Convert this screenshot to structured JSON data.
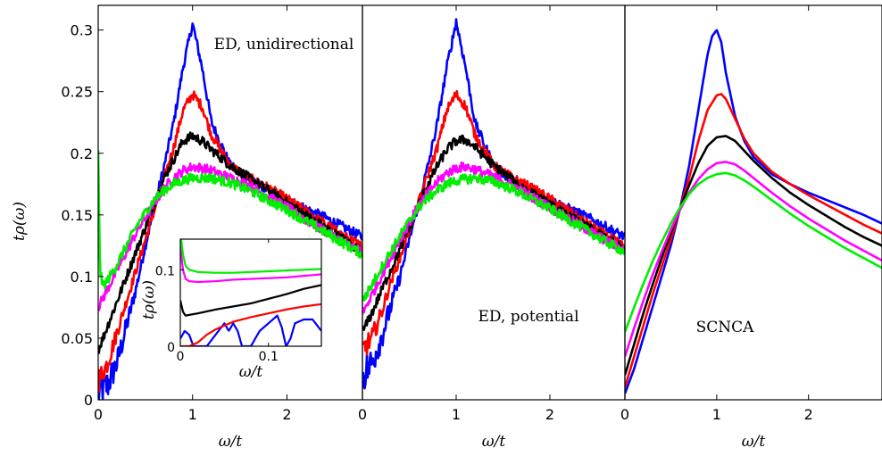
{
  "figure": {
    "ylabel": "tρ(ω)",
    "xlabel": "ω/t"
  },
  "colors": {
    "blue": "#0000ff",
    "red": "#ff0000",
    "black": "#000000",
    "magenta": "#ff00ff",
    "green": "#00ee00"
  },
  "chart_data": [
    {
      "type": "line",
      "panel": "left",
      "annotation": "ED, unidirectional",
      "xlabel": "ω/t",
      "ylabel": "tρ(ω)",
      "xlim": [
        0,
        2.8
      ],
      "ylim": [
        0,
        0.32
      ],
      "xticks": [
        "0",
        "1",
        "2"
      ],
      "yticks": [
        "0",
        "0.05",
        "0.1",
        "0.15",
        "0.2",
        "0.25",
        "0.3"
      ],
      "noisy": true,
      "series": [
        {
          "color": "blue",
          "x": [
            0,
            0.1,
            0.2,
            0.3,
            0.4,
            0.5,
            0.6,
            0.7,
            0.8,
            0.9,
            1.0,
            1.1,
            1.2,
            1.4,
            1.6,
            1.8,
            2.0,
            2.2,
            2.4,
            2.6,
            2.8
          ],
          "y": [
            0.005,
            0.012,
            0.03,
            0.06,
            0.09,
            0.125,
            0.158,
            0.19,
            0.225,
            0.27,
            0.305,
            0.27,
            0.225,
            0.19,
            0.178,
            0.17,
            0.162,
            0.155,
            0.148,
            0.14,
            0.132
          ]
        },
        {
          "color": "red",
          "x": [
            0,
            0.1,
            0.2,
            0.3,
            0.4,
            0.5,
            0.6,
            0.7,
            0.8,
            0.9,
            1.0,
            1.1,
            1.2,
            1.4,
            1.6,
            1.8,
            2.0,
            2.2,
            2.4,
            2.6,
            2.8
          ],
          "y": [
            0.015,
            0.03,
            0.055,
            0.08,
            0.105,
            0.13,
            0.155,
            0.18,
            0.205,
            0.235,
            0.248,
            0.238,
            0.215,
            0.19,
            0.18,
            0.172,
            0.163,
            0.153,
            0.143,
            0.133,
            0.124
          ]
        },
        {
          "color": "black",
          "x": [
            0,
            0.1,
            0.2,
            0.3,
            0.4,
            0.5,
            0.6,
            0.7,
            0.8,
            0.9,
            1.0,
            1.1,
            1.2,
            1.4,
            1.6,
            1.8,
            2.0,
            2.2,
            2.4,
            2.6,
            2.8
          ],
          "y": [
            0.04,
            0.06,
            0.08,
            0.1,
            0.12,
            0.14,
            0.16,
            0.18,
            0.195,
            0.21,
            0.214,
            0.21,
            0.203,
            0.19,
            0.18,
            0.17,
            0.16,
            0.15,
            0.14,
            0.13,
            0.12
          ]
        },
        {
          "color": "magenta",
          "x": [
            0,
            0.1,
            0.2,
            0.3,
            0.4,
            0.5,
            0.6,
            0.7,
            0.8,
            0.9,
            1.0,
            1.1,
            1.2,
            1.4,
            1.6,
            1.8,
            2.0,
            2.2,
            2.4,
            2.6,
            2.8
          ],
          "y": [
            0.075,
            0.09,
            0.105,
            0.12,
            0.135,
            0.148,
            0.16,
            0.172,
            0.18,
            0.186,
            0.189,
            0.188,
            0.186,
            0.18,
            0.174,
            0.165,
            0.156,
            0.146,
            0.137,
            0.128,
            0.12
          ]
        },
        {
          "color": "green",
          "x": [
            0,
            0.02,
            0.05,
            0.1,
            0.2,
            0.3,
            0.4,
            0.5,
            0.6,
            0.7,
            0.8,
            0.9,
            1.0,
            1.2,
            1.4,
            1.6,
            1.8,
            2.0,
            2.2,
            2.4,
            2.6,
            2.8
          ],
          "y": [
            0.2,
            0.105,
            0.092,
            0.097,
            0.11,
            0.125,
            0.14,
            0.152,
            0.163,
            0.17,
            0.175,
            0.178,
            0.18,
            0.18,
            0.176,
            0.17,
            0.162,
            0.154,
            0.145,
            0.136,
            0.127,
            0.118
          ]
        }
      ]
    },
    {
      "type": "line",
      "panel": "inset",
      "xlabel": "ω/t",
      "ylabel": "tρ(ω)",
      "xlim": [
        0,
        0.16
      ],
      "ylim": [
        0,
        0.14
      ],
      "xticks": [
        "0",
        "0.1"
      ],
      "yticks": [
        "0",
        "0.1"
      ],
      "noisy": false,
      "series": [
        {
          "color": "blue",
          "x": [
            0,
            0.005,
            0.01,
            0.015,
            0.02,
            0.03,
            0.04,
            0.05,
            0.055,
            0.06,
            0.065,
            0.07,
            0.08,
            0.09,
            0.1,
            0.11,
            0.115,
            0.12,
            0.125,
            0.13,
            0.14,
            0.15,
            0.16
          ],
          "y": [
            0.01,
            0.02,
            0.015,
            0.0,
            0.0,
            0.0,
            0.015,
            0.03,
            0.02,
            0.03,
            0.02,
            0.0,
            0.0,
            0.02,
            0.03,
            0.04,
            0.025,
            0.0,
            0.01,
            0.03,
            0.035,
            0.035,
            0.02
          ]
        },
        {
          "color": "red",
          "x": [
            0,
            0.01,
            0.02,
            0.03,
            0.04,
            0.06,
            0.08,
            0.1,
            0.12,
            0.14,
            0.16
          ],
          "y": [
            0.0,
            0.0,
            0.005,
            0.015,
            0.022,
            0.032,
            0.038,
            0.043,
            0.048,
            0.052,
            0.055
          ]
        },
        {
          "color": "black",
          "x": [
            0,
            0.003,
            0.006,
            0.01,
            0.02,
            0.04,
            0.06,
            0.08,
            0.1,
            0.12,
            0.14,
            0.16
          ],
          "y": [
            0.06,
            0.045,
            0.04,
            0.041,
            0.043,
            0.048,
            0.052,
            0.056,
            0.062,
            0.068,
            0.075,
            0.08
          ]
        },
        {
          "color": "magenta",
          "x": [
            0,
            0.003,
            0.006,
            0.01,
            0.02,
            0.04,
            0.06,
            0.08,
            0.1,
            0.12,
            0.14,
            0.16
          ],
          "y": [
            0.13,
            0.1,
            0.088,
            0.085,
            0.084,
            0.085,
            0.087,
            0.088,
            0.089,
            0.09,
            0.092,
            0.094
          ]
        },
        {
          "color": "green",
          "x": [
            0,
            0.003,
            0.006,
            0.01,
            0.02,
            0.04,
            0.06,
            0.08,
            0.1,
            0.12,
            0.14,
            0.16
          ],
          "y": [
            0.15,
            0.12,
            0.105,
            0.1,
            0.097,
            0.096,
            0.096,
            0.097,
            0.098,
            0.099,
            0.1,
            0.101
          ]
        }
      ]
    },
    {
      "type": "line",
      "panel": "middle",
      "annotation": "ED, potential",
      "xlabel": "ω/t",
      "xlim": [
        0,
        2.8
      ],
      "ylim": [
        0,
        0.32
      ],
      "xticks": [
        "0",
        "1",
        "2"
      ],
      "noisy": true,
      "series": [
        {
          "color": "blue",
          "x": [
            0,
            0.1,
            0.2,
            0.3,
            0.4,
            0.5,
            0.6,
            0.7,
            0.8,
            0.9,
            1.0,
            1.1,
            1.2,
            1.4,
            1.6,
            1.8,
            2.0,
            2.2,
            2.4,
            2.6,
            2.8
          ],
          "y": [
            0.02,
            0.03,
            0.05,
            0.075,
            0.1,
            0.13,
            0.16,
            0.19,
            0.225,
            0.27,
            0.307,
            0.27,
            0.225,
            0.19,
            0.178,
            0.17,
            0.162,
            0.155,
            0.148,
            0.14,
            0.132
          ]
        },
        {
          "color": "red",
          "x": [
            0,
            0.1,
            0.2,
            0.3,
            0.4,
            0.5,
            0.6,
            0.7,
            0.8,
            0.9,
            1.0,
            1.1,
            1.2,
            1.4,
            1.6,
            1.8,
            2.0,
            2.2,
            2.4,
            2.6,
            2.8
          ],
          "y": [
            0.04,
            0.05,
            0.07,
            0.095,
            0.115,
            0.138,
            0.16,
            0.183,
            0.205,
            0.235,
            0.248,
            0.238,
            0.215,
            0.19,
            0.18,
            0.172,
            0.163,
            0.153,
            0.143,
            0.133,
            0.124
          ]
        },
        {
          "color": "black",
          "x": [
            0,
            0.1,
            0.2,
            0.3,
            0.4,
            0.5,
            0.6,
            0.7,
            0.8,
            0.9,
            1.0,
            1.1,
            1.2,
            1.4,
            1.6,
            1.8,
            2.0,
            2.2,
            2.4,
            2.6,
            2.8
          ],
          "y": [
            0.055,
            0.07,
            0.088,
            0.105,
            0.122,
            0.14,
            0.158,
            0.175,
            0.19,
            0.203,
            0.21,
            0.211,
            0.205,
            0.19,
            0.178,
            0.168,
            0.158,
            0.149,
            0.14,
            0.131,
            0.122
          ]
        },
        {
          "color": "magenta",
          "x": [
            0,
            0.1,
            0.2,
            0.3,
            0.4,
            0.5,
            0.6,
            0.7,
            0.8,
            0.9,
            1.0,
            1.1,
            1.2,
            1.4,
            1.6,
            1.8,
            2.0,
            2.2,
            2.4,
            2.6,
            2.8
          ],
          "y": [
            0.07,
            0.085,
            0.1,
            0.115,
            0.13,
            0.144,
            0.157,
            0.168,
            0.177,
            0.184,
            0.188,
            0.189,
            0.187,
            0.181,
            0.174,
            0.165,
            0.156,
            0.147,
            0.138,
            0.129,
            0.121
          ]
        },
        {
          "color": "green",
          "x": [
            0,
            0.1,
            0.2,
            0.3,
            0.4,
            0.5,
            0.6,
            0.7,
            0.8,
            0.9,
            1.0,
            1.2,
            1.4,
            1.6,
            1.8,
            2.0,
            2.2,
            2.4,
            2.6,
            2.8
          ],
          "y": [
            0.08,
            0.093,
            0.107,
            0.12,
            0.133,
            0.145,
            0.156,
            0.164,
            0.17,
            0.175,
            0.178,
            0.18,
            0.177,
            0.171,
            0.163,
            0.155,
            0.146,
            0.137,
            0.128,
            0.12
          ]
        }
      ]
    },
    {
      "type": "line",
      "panel": "right",
      "annotation": "SCNCA",
      "xlabel": "ω/t",
      "xlim": [
        0,
        2.8
      ],
      "ylim": [
        0,
        0.32
      ],
      "xticks": [
        "0",
        "1",
        "2"
      ],
      "noisy": false,
      "series": [
        {
          "color": "blue",
          "x": [
            0,
            0.1,
            0.2,
            0.3,
            0.4,
            0.5,
            0.6,
            0.7,
            0.8,
            0.9,
            0.95,
            1.0,
            1.05,
            1.1,
            1.2,
            1.3,
            1.4,
            1.6,
            1.8,
            2.0,
            2.2,
            2.4,
            2.6,
            2.8
          ],
          "y": [
            0.005,
            0.025,
            0.05,
            0.075,
            0.1,
            0.125,
            0.155,
            0.19,
            0.235,
            0.28,
            0.295,
            0.3,
            0.29,
            0.265,
            0.23,
            0.21,
            0.197,
            0.183,
            0.175,
            0.168,
            0.162,
            0.156,
            0.15,
            0.143
          ]
        },
        {
          "color": "red",
          "x": [
            0,
            0.1,
            0.2,
            0.3,
            0.4,
            0.5,
            0.6,
            0.7,
            0.8,
            0.9,
            1.0,
            1.05,
            1.1,
            1.2,
            1.3,
            1.4,
            1.6,
            1.8,
            2.0,
            2.2,
            2.4,
            2.6,
            2.8
          ],
          "y": [
            0.01,
            0.035,
            0.06,
            0.085,
            0.108,
            0.13,
            0.155,
            0.18,
            0.21,
            0.235,
            0.247,
            0.248,
            0.244,
            0.228,
            0.212,
            0.2,
            0.185,
            0.175,
            0.166,
            0.158,
            0.15,
            0.142,
            0.135
          ]
        },
        {
          "color": "black",
          "x": [
            0,
            0.1,
            0.2,
            0.3,
            0.4,
            0.5,
            0.6,
            0.7,
            0.8,
            0.9,
            1.0,
            1.1,
            1.2,
            1.3,
            1.4,
            1.6,
            1.8,
            2.0,
            2.2,
            2.4,
            2.6,
            2.8
          ],
          "y": [
            0.02,
            0.045,
            0.07,
            0.093,
            0.115,
            0.135,
            0.155,
            0.174,
            0.192,
            0.206,
            0.213,
            0.214,
            0.21,
            0.202,
            0.194,
            0.18,
            0.168,
            0.158,
            0.149,
            0.14,
            0.132,
            0.125
          ]
        },
        {
          "color": "magenta",
          "x": [
            0,
            0.1,
            0.2,
            0.3,
            0.4,
            0.5,
            0.6,
            0.7,
            0.8,
            0.9,
            1.0,
            1.1,
            1.2,
            1.3,
            1.4,
            1.6,
            1.8,
            2.0,
            2.2,
            2.4,
            2.6,
            2.8
          ],
          "y": [
            0.035,
            0.058,
            0.08,
            0.101,
            0.12,
            0.138,
            0.154,
            0.168,
            0.179,
            0.187,
            0.192,
            0.193,
            0.191,
            0.186,
            0.18,
            0.168,
            0.157,
            0.147,
            0.138,
            0.129,
            0.121,
            0.113
          ]
        },
        {
          "color": "green",
          "x": [
            0,
            0.1,
            0.2,
            0.3,
            0.4,
            0.5,
            0.6,
            0.7,
            0.8,
            0.9,
            1.0,
            1.1,
            1.2,
            1.3,
            1.4,
            1.6,
            1.8,
            2.0,
            2.2,
            2.4,
            2.6,
            2.8
          ],
          "y": [
            0.055,
            0.075,
            0.094,
            0.112,
            0.128,
            0.143,
            0.156,
            0.167,
            0.175,
            0.18,
            0.183,
            0.184,
            0.182,
            0.178,
            0.173,
            0.162,
            0.151,
            0.141,
            0.132,
            0.123,
            0.115,
            0.107
          ]
        }
      ]
    }
  ]
}
